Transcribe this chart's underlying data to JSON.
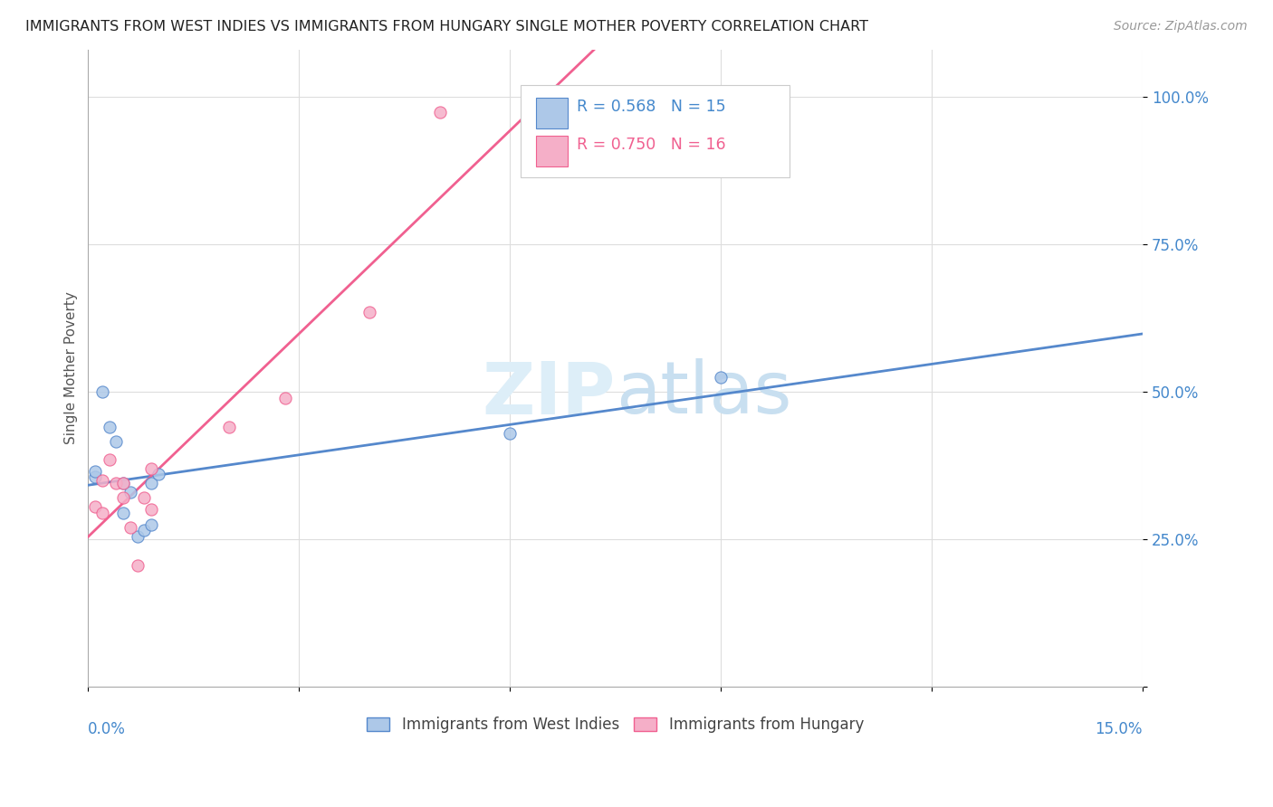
{
  "title": "IMMIGRANTS FROM WEST INDIES VS IMMIGRANTS FROM HUNGARY SINGLE MOTHER POVERTY CORRELATION CHART",
  "source": "Source: ZipAtlas.com",
  "ylabel": "Single Mother Poverty",
  "y_ticks": [
    0.0,
    0.25,
    0.5,
    0.75,
    1.0
  ],
  "y_tick_labels": [
    "",
    "25.0%",
    "50.0%",
    "75.0%",
    "100.0%"
  ],
  "x_lim": [
    0.0,
    0.15
  ],
  "y_lim": [
    0.0,
    1.08
  ],
  "legend_label1": "Immigrants from West Indies",
  "legend_label2": "Immigrants from Hungary",
  "R1": 0.568,
  "N1": 15,
  "R2": 0.75,
  "N2": 16,
  "color_west_indies": "#adc8e8",
  "color_hungary": "#f5afc8",
  "line_color_west_indies": "#5588cc",
  "line_color_hungary": "#f06090",
  "watermark_zip": "ZIP",
  "watermark_atlas": "atlas",
  "west_indies_x": [
    0.001,
    0.001,
    0.002,
    0.003,
    0.004,
    0.005,
    0.005,
    0.006,
    0.007,
    0.008,
    0.009,
    0.009,
    0.01,
    0.06,
    0.09
  ],
  "west_indies_y": [
    0.355,
    0.365,
    0.5,
    0.44,
    0.415,
    0.345,
    0.295,
    0.33,
    0.255,
    0.265,
    0.275,
    0.345,
    0.36,
    0.43,
    0.525
  ],
  "hungary_x": [
    0.001,
    0.002,
    0.002,
    0.003,
    0.004,
    0.005,
    0.005,
    0.006,
    0.007,
    0.008,
    0.009,
    0.009,
    0.02,
    0.028,
    0.04,
    0.05
  ],
  "hungary_y": [
    0.305,
    0.295,
    0.35,
    0.385,
    0.345,
    0.345,
    0.32,
    0.27,
    0.205,
    0.32,
    0.37,
    0.3,
    0.44,
    0.49,
    0.635,
    0.975
  ]
}
